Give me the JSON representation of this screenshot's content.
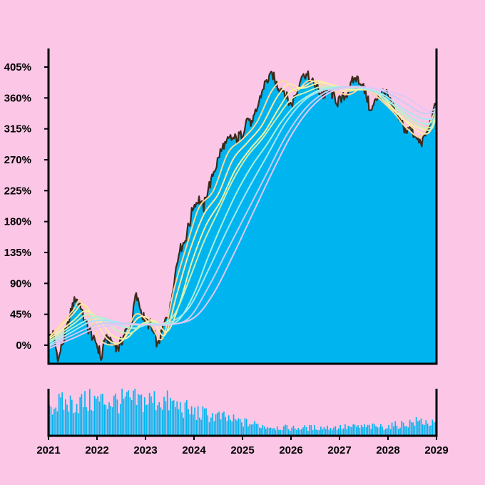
{
  "chart_data": {
    "type": "area",
    "y_unit": "%",
    "ylim": [
      -27,
      432
    ],
    "y_ticks": [
      0,
      45,
      90,
      135,
      180,
      225,
      270,
      315,
      360,
      405
    ],
    "y_tick_labels": [
      "0%",
      "45%",
      "90%",
      "135%",
      "180%",
      "225%",
      "270%",
      "315%",
      "360%",
      "405%"
    ],
    "x_ticks": [
      2021,
      2022,
      2023,
      2024,
      2025,
      2026,
      2027,
      2028,
      2029
    ],
    "x_tick_labels": [
      "2021",
      "2022",
      "2023",
      "2024",
      "2025",
      "2026",
      "2027",
      "2028",
      "2029"
    ],
    "xlim": [
      2021,
      2029
    ],
    "grid": false,
    "legend": "none",
    "colors": {
      "background": "#fcc6e6",
      "area_fill": "#00b5ef",
      "price_line": "#3b2a1c",
      "axis": "#000000",
      "ma_lines": [
        "#ffd79a",
        "#ffe8a8",
        "#f2f2a8",
        "#c8f0b8",
        "#a8f0dc",
        "#a8e6f5",
        "#c6cdf5",
        "#e0c8f5"
      ]
    },
    "price_series": {
      "x": [
        2021.0,
        2021.1,
        2021.2,
        2021.3,
        2021.45,
        2021.55,
        2021.65,
        2021.75,
        2021.85,
        2022.0,
        2022.1,
        2022.15,
        2022.3,
        2022.45,
        2022.55,
        2022.7,
        2022.8,
        2022.95,
        2023.1,
        2023.25,
        2023.4,
        2023.5,
        2023.6,
        2023.7,
        2023.8,
        2023.9,
        2024.0,
        2024.1,
        2024.2,
        2024.3,
        2024.45,
        2024.6,
        2024.75,
        2024.9,
        2025.0,
        2025.1,
        2025.2,
        2025.3,
        2025.45,
        2025.6,
        2025.75,
        2025.85,
        2026.0,
        2026.1,
        2026.2,
        2026.3,
        2026.45,
        2026.55,
        2026.65,
        2026.8,
        2026.95,
        2027.1,
        2027.25,
        2027.35,
        2027.5,
        2027.65,
        2027.8,
        2027.95,
        2028.1,
        2028.25,
        2028.35,
        2028.45,
        2028.55,
        2028.7,
        2028.8,
        2028.9,
        2029.0
      ],
      "y": [
        10,
        15,
        -20,
        5,
        45,
        70,
        60,
        35,
        20,
        0,
        -20,
        10,
        5,
        -5,
        15,
        30,
        75,
        40,
        30,
        0,
        35,
        50,
        100,
        140,
        150,
        175,
        205,
        215,
        200,
        230,
        260,
        290,
        300,
        300,
        310,
        330,
        320,
        345,
        380,
        395,
        375,
        370,
        350,
        365,
        390,
        395,
        380,
        375,
        365,
        370,
        355,
        360,
        380,
        390,
        375,
        340,
        365,
        370,
        345,
        330,
        310,
        320,
        300,
        295,
        310,
        330,
        355
      ]
    },
    "moving_averages": [
      {
        "x": [
          2021.0,
          2021.5,
          2021.65,
          2021.85,
          2022.1,
          2022.5,
          2022.8,
          2023.1,
          2023.35,
          2023.6,
          2023.85,
          2024.1,
          2024.4,
          2024.7,
          2025.0,
          2025.3,
          2025.6,
          2025.85,
          2026.1,
          2026.35,
          2026.6,
          2026.9,
          2027.2,
          2027.5,
          2027.8,
          2028.1,
          2028.4,
          2028.7,
          2029.0
        ],
        "y": [
          10,
          50,
          65,
          40,
          5,
          5,
          45,
          30,
          10,
          85,
          145,
          200,
          225,
          280,
          300,
          325,
          370,
          385,
          370,
          385,
          380,
          370,
          365,
          375,
          360,
          340,
          315,
          305,
          345
        ]
      },
      {
        "x": [
          2021.0,
          2021.5,
          2021.7,
          2021.9,
          2022.2,
          2022.5,
          2022.85,
          2023.15,
          2023.4,
          2023.65,
          2023.9,
          2024.2,
          2024.5,
          2024.8,
          2025.1,
          2025.4,
          2025.7,
          2025.95,
          2026.2,
          2026.5,
          2026.8,
          2027.1,
          2027.4,
          2027.7,
          2028.0,
          2028.3,
          2028.6,
          2028.85,
          2029.0
        ],
        "y": [
          10,
          45,
          60,
          45,
          10,
          5,
          40,
          35,
          15,
          75,
          135,
          190,
          220,
          270,
          295,
          320,
          360,
          380,
          375,
          385,
          380,
          370,
          372,
          370,
          350,
          330,
          312,
          310,
          340
        ]
      },
      {
        "x": [
          2021.0,
          2021.5,
          2021.75,
          2022.0,
          2022.3,
          2022.6,
          2022.9,
          2023.2,
          2023.45,
          2023.7,
          2023.95,
          2024.25,
          2024.55,
          2024.85,
          2025.15,
          2025.45,
          2025.75,
          2026.0,
          2026.3,
          2026.6,
          2026.9,
          2027.2,
          2027.5,
          2027.8,
          2028.1,
          2028.4,
          2028.7,
          2028.9,
          2029.0
        ],
        "y": [
          8,
          35,
          50,
          40,
          15,
          10,
          30,
          35,
          20,
          60,
          120,
          175,
          210,
          255,
          285,
          310,
          345,
          370,
          375,
          382,
          378,
          372,
          372,
          368,
          345,
          325,
          315,
          315,
          335
        ]
      },
      {
        "x": [
          2021.0,
          2021.5,
          2021.8,
          2022.1,
          2022.4,
          2022.7,
          2023.0,
          2023.3,
          2023.6,
          2023.9,
          2024.2,
          2024.5,
          2024.8,
          2025.1,
          2025.4,
          2025.7,
          2026.0,
          2026.3,
          2026.6,
          2026.9,
          2027.2,
          2027.5,
          2027.8,
          2028.1,
          2028.4,
          2028.7,
          2028.9,
          2029.0
        ],
        "y": [
          5,
          30,
          45,
          38,
          22,
          18,
          32,
          30,
          45,
          95,
          150,
          195,
          240,
          275,
          300,
          330,
          358,
          368,
          376,
          376,
          374,
          374,
          366,
          350,
          330,
          318,
          318,
          332
        ]
      },
      {
        "x": [
          2021.0,
          2021.5,
          2021.9,
          2022.2,
          2022.5,
          2022.8,
          2023.1,
          2023.4,
          2023.7,
          2024.0,
          2024.3,
          2024.6,
          2024.9,
          2025.2,
          2025.5,
          2025.8,
          2026.1,
          2026.4,
          2026.7,
          2027.0,
          2027.3,
          2027.6,
          2027.9,
          2028.2,
          2028.5,
          2028.8,
          2029.0
        ],
        "y": [
          3,
          25,
          40,
          38,
          28,
          25,
          32,
          30,
          38,
          75,
          130,
          180,
          225,
          262,
          292,
          325,
          350,
          365,
          374,
          376,
          375,
          372,
          362,
          345,
          330,
          322,
          332
        ]
      },
      {
        "x": [
          2021.0,
          2021.5,
          2021.9,
          2022.3,
          2022.7,
          2023.1,
          2023.5,
          2023.9,
          2024.3,
          2024.7,
          2025.1,
          2025.5,
          2025.9,
          2026.3,
          2026.7,
          2027.1,
          2027.5,
          2027.9,
          2028.3,
          2028.7,
          2029.0
        ],
        "y": [
          0,
          20,
          35,
          35,
          30,
          30,
          33,
          55,
          110,
          170,
          225,
          275,
          325,
          358,
          372,
          376,
          374,
          365,
          345,
          330,
          330
        ]
      },
      {
        "x": [
          2021.0,
          2021.5,
          2022.0,
          2022.5,
          2023.0,
          2023.5,
          2023.9,
          2024.3,
          2024.7,
          2025.1,
          2025.5,
          2025.9,
          2026.3,
          2026.7,
          2027.1,
          2027.5,
          2027.9,
          2028.3,
          2028.7,
          2029.0
        ],
        "y": [
          -2,
          15,
          30,
          32,
          30,
          30,
          40,
          85,
          140,
          195,
          250,
          305,
          345,
          368,
          376,
          376,
          370,
          355,
          338,
          340
        ]
      },
      {
        "x": [
          2021.0,
          2021.5,
          2022.0,
          2022.5,
          2023.0,
          2023.5,
          2024.0,
          2024.4,
          2024.8,
          2025.2,
          2025.6,
          2026.0,
          2026.4,
          2026.8,
          2027.2,
          2027.6,
          2028.0,
          2028.4,
          2028.8,
          2029.0
        ],
        "y": [
          -5,
          10,
          25,
          30,
          30,
          30,
          40,
          75,
          130,
          190,
          250,
          305,
          345,
          368,
          375,
          375,
          370,
          360,
          342,
          345
        ]
      }
    ],
    "volume": {
      "x_start": 2021.0,
      "x_end": 2029.0,
      "count": 240,
      "profile_x": [
        2021.0,
        2022.0,
        2023.0,
        2023.3,
        2024.0,
        2024.5,
        2025.0,
        2025.5,
        2026.0,
        2027.0,
        2028.0,
        2028.7,
        2029.0
      ],
      "profile_level": [
        0.72,
        0.82,
        0.82,
        0.85,
        0.55,
        0.45,
        0.32,
        0.22,
        0.18,
        0.2,
        0.22,
        0.35,
        0.25
      ]
    }
  }
}
